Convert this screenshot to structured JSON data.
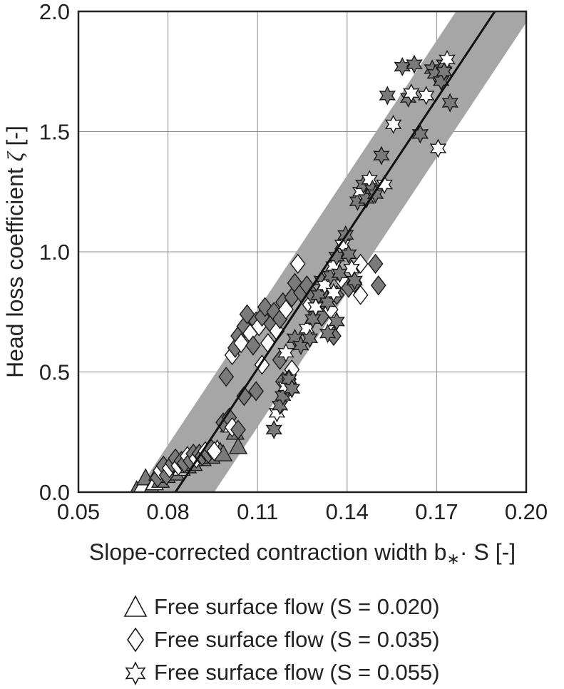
{
  "chart_data": {
    "type": "scatter",
    "xlabel": "Slope-corrected contraction width b∗· S [-]",
    "xlabel_parts": {
      "main": "Slope-corrected contraction width b",
      "sub": "∗",
      "tail": "· S [-]"
    },
    "ylabel": "Head loss coefficient ζ [-]",
    "ylabel_parts": {
      "main": "Head loss coefficient ",
      "symbol": "ζ",
      "tail": " [-]"
    },
    "xlim": [
      0.05,
      0.2
    ],
    "ylim": [
      0.0,
      2.0
    ],
    "xticks": [
      0.05,
      0.08,
      0.11,
      0.14,
      0.17,
      0.2
    ],
    "xtick_labels": [
      "0.05",
      "0.08",
      "0.11",
      "0.14",
      "0.17",
      "0.20"
    ],
    "yticks": [
      0.0,
      0.5,
      1.0,
      1.5,
      2.0
    ],
    "ytick_labels": [
      "0.0",
      "0.5",
      "1.0",
      "1.5",
      "2.0"
    ],
    "grid": true,
    "legend_position": "below",
    "fit_line": {
      "x": [
        0.0825,
        0.1895
      ],
      "y": [
        0.0,
        2.0
      ],
      "color": "#111111"
    },
    "uncertainty_band": {
      "half_width_x": 0.013,
      "color": "#a6a6a6"
    },
    "series": [
      {
        "name": "Free surface flow (S = 0.020)",
        "marker": "triangle",
        "points": [
          [
            0.0695,
            0.01
          ],
          [
            0.0715,
            0.03
          ],
          [
            0.0725,
            0.06
          ],
          [
            0.0745,
            0.02
          ],
          [
            0.0755,
            0.04
          ],
          [
            0.0765,
            0.08
          ],
          [
            0.0775,
            0.05
          ],
          [
            0.0785,
            0.1
          ],
          [
            0.0795,
            0.07
          ],
          [
            0.0805,
            0.09
          ],
          [
            0.0815,
            0.11
          ],
          [
            0.0825,
            0.08
          ],
          [
            0.0835,
            0.12
          ],
          [
            0.0845,
            0.1
          ],
          [
            0.0855,
            0.13
          ],
          [
            0.0865,
            0.11
          ],
          [
            0.0875,
            0.14
          ],
          [
            0.0885,
            0.12
          ],
          [
            0.0895,
            0.15
          ],
          [
            0.0905,
            0.16
          ],
          [
            0.0915,
            0.14
          ],
          [
            0.0925,
            0.17
          ],
          [
            0.0935,
            0.16
          ],
          [
            0.0945,
            0.15
          ],
          [
            0.0955,
            0.17
          ],
          [
            0.0965,
            0.18
          ],
          [
            0.0975,
            0.17
          ],
          [
            0.0985,
            0.16
          ],
          [
            0.1005,
            0.28
          ],
          [
            0.1025,
            0.25
          ],
          [
            0.1035,
            0.19
          ]
        ]
      },
      {
        "name": "Free surface flow (S = 0.035)",
        "marker": "diamond",
        "points": [
          [
            0.0765,
            0.06
          ],
          [
            0.0775,
            0.09
          ],
          [
            0.0785,
            0.11
          ],
          [
            0.0795,
            0.07
          ],
          [
            0.0805,
            0.1
          ],
          [
            0.0815,
            0.12
          ],
          [
            0.0825,
            0.14
          ],
          [
            0.0835,
            0.11
          ],
          [
            0.0845,
            0.13
          ],
          [
            0.0855,
            0.12
          ],
          [
            0.0865,
            0.15
          ],
          [
            0.0875,
            0.13
          ],
          [
            0.0885,
            0.16
          ],
          [
            0.0895,
            0.14
          ],
          [
            0.0905,
            0.16
          ],
          [
            0.0915,
            0.15
          ],
          [
            0.0925,
            0.17
          ],
          [
            0.0935,
            0.16
          ],
          [
            0.0945,
            0.18
          ],
          [
            0.0955,
            0.17
          ],
          [
            0.0985,
            0.29
          ],
          [
            0.1005,
            0.31
          ],
          [
            0.1015,
            0.27
          ],
          [
            0.1035,
            0.26
          ],
          [
            0.0995,
            0.48
          ],
          [
            0.1015,
            0.57
          ],
          [
            0.1025,
            0.6
          ],
          [
            0.1035,
            0.65
          ],
          [
            0.1045,
            0.62
          ],
          [
            0.1055,
            0.69
          ],
          [
            0.1065,
            0.74
          ],
          [
            0.1075,
            0.66
          ],
          [
            0.1085,
            0.61
          ],
          [
            0.1095,
            0.71
          ],
          [
            0.1105,
            0.69
          ],
          [
            0.1115,
            0.73
          ],
          [
            0.1125,
            0.77
          ],
          [
            0.1135,
            0.62
          ],
          [
            0.1145,
            0.7
          ],
          [
            0.1155,
            0.75
          ],
          [
            0.1165,
            0.67
          ],
          [
            0.1175,
            0.72
          ],
          [
            0.1185,
            0.79
          ],
          [
            0.1195,
            0.76
          ],
          [
            0.1215,
            0.81
          ],
          [
            0.1225,
            0.87
          ],
          [
            0.1235,
            0.95
          ],
          [
            0.1245,
            0.83
          ],
          [
            0.1265,
            0.86
          ],
          [
            0.1275,
            0.78
          ],
          [
            0.1285,
            0.82
          ],
          [
            0.1295,
            0.74
          ],
          [
            0.1305,
            0.78
          ],
          [
            0.1315,
            0.73
          ],
          [
            0.1325,
            0.81
          ],
          [
            0.1345,
            0.76
          ],
          [
            0.1355,
            0.65
          ],
          [
            0.1365,
            0.82
          ],
          [
            0.1385,
            0.88
          ],
          [
            0.1405,
            0.85
          ],
          [
            0.1425,
            0.87
          ],
          [
            0.1445,
            0.95
          ],
          [
            0.1495,
            0.95
          ],
          [
            0.1505,
            0.86
          ],
          [
            0.1445,
            0.82
          ],
          [
            0.1055,
            0.4
          ],
          [
            0.1095,
            0.42
          ],
          [
            0.1115,
            0.53
          ],
          [
            0.1185,
            0.46
          ],
          [
            0.1195,
            0.42
          ],
          [
            0.1215,
            0.51
          ],
          [
            0.1205,
            0.47
          ],
          [
            0.1175,
            0.55
          ]
        ]
      },
      {
        "name": "Free surface flow (S = 0.055)",
        "marker": "star",
        "points": [
          [
            0.1155,
            0.26
          ],
          [
            0.1165,
            0.33
          ],
          [
            0.1175,
            0.36
          ],
          [
            0.1185,
            0.4
          ],
          [
            0.1195,
            0.44
          ],
          [
            0.1205,
            0.47
          ],
          [
            0.1215,
            0.43
          ],
          [
            0.1195,
            0.58
          ],
          [
            0.1225,
            0.64
          ],
          [
            0.1245,
            0.61
          ],
          [
            0.1265,
            0.68
          ],
          [
            0.1275,
            0.64
          ],
          [
            0.1285,
            0.72
          ],
          [
            0.1295,
            0.77
          ],
          [
            0.1305,
            0.82
          ],
          [
            0.1315,
            0.88
          ],
          [
            0.1325,
            0.86
          ],
          [
            0.1335,
            0.79
          ],
          [
            0.1345,
            0.9
          ],
          [
            0.1355,
            0.94
          ],
          [
            0.1365,
            0.98
          ],
          [
            0.1375,
            0.91
          ],
          [
            0.1385,
            1.03
          ],
          [
            0.1395,
            1.07
          ],
          [
            0.1405,
            0.99
          ],
          [
            0.1415,
            0.93
          ],
          [
            0.1425,
            0.88
          ],
          [
            0.1435,
            1.21
          ],
          [
            0.1445,
            1.25
          ],
          [
            0.1455,
            1.28
          ],
          [
            0.1465,
            1.22
          ],
          [
            0.1475,
            1.3
          ],
          [
            0.1485,
            1.26
          ],
          [
            0.1495,
            1.24
          ],
          [
            0.1525,
            1.28
          ],
          [
            0.1515,
            1.4
          ],
          [
            0.1535,
            1.65
          ],
          [
            0.1555,
            1.53
          ],
          [
            0.1585,
            1.77
          ],
          [
            0.1605,
            1.64
          ],
          [
            0.1615,
            1.66
          ],
          [
            0.1625,
            1.78
          ],
          [
            0.1645,
            1.49
          ],
          [
            0.1665,
            1.65
          ],
          [
            0.1685,
            1.76
          ],
          [
            0.1695,
            1.74
          ],
          [
            0.1705,
            1.43
          ],
          [
            0.1715,
            1.71
          ],
          [
            0.1725,
            1.78
          ],
          [
            0.1735,
            1.8
          ],
          [
            0.1745,
            1.62
          ],
          [
            0.1725,
            1.75
          ],
          [
            0.1355,
            0.83
          ],
          [
            0.1365,
            0.71
          ],
          [
            0.1335,
            0.66
          ]
        ]
      }
    ]
  },
  "legend": {
    "items": [
      {
        "marker": "triangle",
        "label": "Free surface flow (S = 0.020)"
      },
      {
        "marker": "diamond",
        "label": "Free surface flow (S = 0.035)"
      },
      {
        "marker": "star",
        "label": "Free surface flow (S = 0.055)"
      }
    ]
  },
  "colors": {
    "band": "#a6a6a6",
    "grid": "#8c8c8c",
    "axis": "#222222",
    "marker_stroke": "#1a1a1a",
    "marker_gray_fill": "#7a7a7a",
    "marker_white_fill": "#ffffff"
  }
}
